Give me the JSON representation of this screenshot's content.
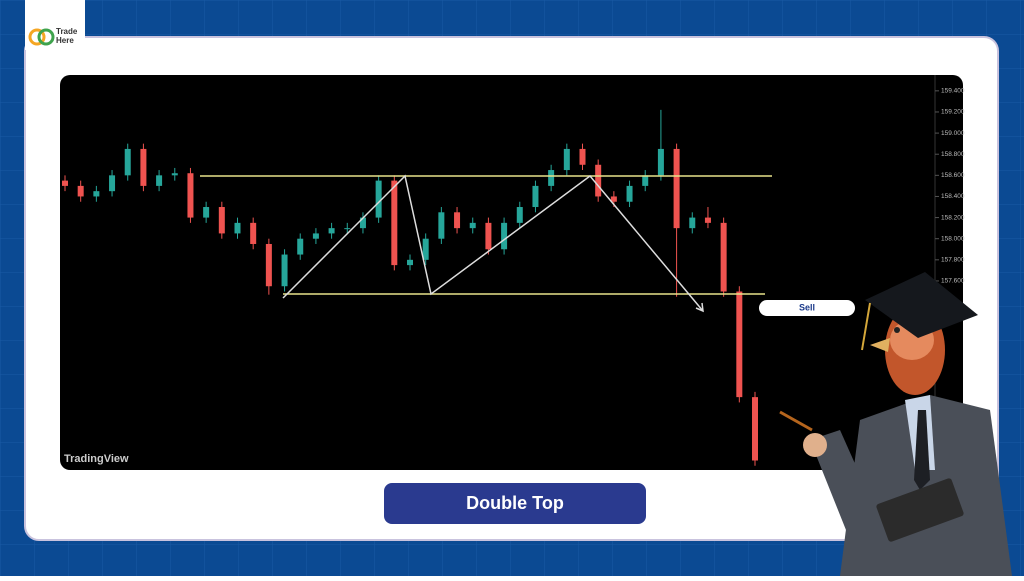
{
  "logo": {
    "line1": "Trade",
    "line2": "Here"
  },
  "chart_data": {
    "type": "candlestick",
    "open": [
      158.55,
      158.5,
      158.4,
      158.45,
      158.6,
      158.85,
      158.5,
      158.6,
      158.62,
      158.2,
      158.3,
      158.05,
      158.15,
      157.95,
      157.55,
      157.85,
      158.0,
      158.05,
      158.1,
      158.1,
      158.2,
      158.55,
      157.75,
      157.8,
      158.0,
      158.25,
      158.1,
      158.15,
      157.9,
      158.15,
      158.3,
      158.5,
      158.65,
      158.85,
      158.7,
      158.4,
      158.35,
      158.5,
      158.6,
      158.85,
      158.1,
      158.2,
      158.15,
      157.5,
      156.5
    ],
    "high": [
      158.6,
      158.55,
      158.5,
      158.65,
      158.9,
      158.9,
      158.65,
      158.67,
      158.67,
      158.35,
      158.35,
      158.2,
      158.2,
      158.0,
      157.9,
      158.05,
      158.1,
      158.15,
      158.15,
      158.25,
      158.6,
      158.6,
      157.85,
      158.05,
      158.3,
      158.3,
      158.2,
      158.2,
      158.2,
      158.35,
      158.55,
      158.7,
      158.9,
      158.9,
      158.75,
      158.45,
      158.55,
      158.65,
      159.22,
      158.9,
      158.25,
      158.3,
      158.2,
      157.55,
      156.55
    ],
    "low": [
      158.45,
      158.35,
      158.35,
      158.4,
      158.55,
      158.45,
      158.45,
      158.55,
      158.15,
      158.15,
      158.0,
      158.0,
      157.9,
      157.47,
      157.5,
      157.8,
      157.95,
      158.0,
      158.05,
      158.05,
      158.15,
      157.7,
      157.7,
      157.75,
      157.95,
      158.05,
      158.05,
      157.85,
      157.85,
      158.1,
      158.25,
      158.45,
      158.6,
      158.65,
      158.35,
      158.3,
      158.3,
      158.45,
      158.55,
      157.45,
      158.05,
      158.1,
      157.45,
      156.45,
      155.85
    ],
    "close": [
      158.5,
      158.4,
      158.45,
      158.6,
      158.85,
      158.5,
      158.6,
      158.62,
      158.2,
      158.3,
      158.05,
      158.15,
      157.95,
      157.55,
      157.85,
      158.0,
      158.05,
      158.1,
      158.1,
      158.2,
      158.55,
      157.75,
      157.8,
      158.0,
      158.25,
      158.1,
      158.15,
      157.9,
      158.15,
      158.3,
      158.5,
      158.65,
      158.85,
      158.7,
      158.4,
      158.35,
      158.5,
      158.6,
      158.85,
      158.1,
      158.2,
      158.15,
      157.5,
      156.5,
      155.9
    ],
    "up_color": "#26a69a",
    "down_color": "#ef5350",
    "ylim": [
      155.81,
      159.55
    ],
    "yticks": [
      {
        "value": 159.4,
        "label": "159.400"
      },
      {
        "value": 159.2,
        "label": "159.200"
      },
      {
        "value": 159.0,
        "label": "159.000"
      },
      {
        "value": 158.8,
        "label": "158.800"
      },
      {
        "value": 158.6,
        "label": "158.600"
      },
      {
        "value": 158.4,
        "label": "158.400"
      },
      {
        "value": 158.2,
        "label": "158.200"
      },
      {
        "value": 158.0,
        "label": "158.000"
      },
      {
        "value": 157.8,
        "label": "157.800"
      },
      {
        "value": 157.6,
        "label": "157.600"
      }
    ],
    "watermark": "TradingView",
    "annotation": "Sell"
  },
  "caption": "Double Top"
}
